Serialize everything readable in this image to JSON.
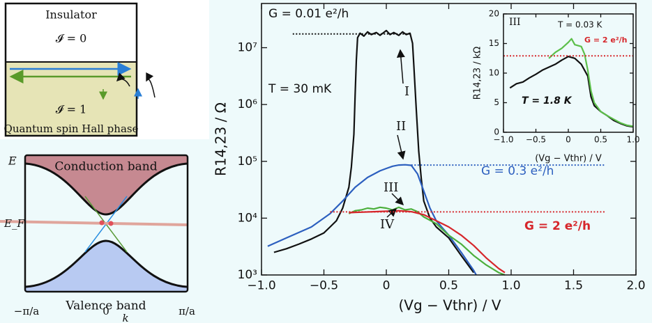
{
  "chart_data": [
    {
      "type": "line",
      "log_y": true,
      "ylabel": "R14,23 / Ω",
      "xlabel": "(Vg − Vthr) / V",
      "xlim": [
        -1.0,
        2.0
      ],
      "xticks": [
        {
          "value": -1.0,
          "label": "−1.0"
        },
        {
          "value": -0.5,
          "label": "−0.5"
        },
        0,
        0.5,
        {
          "value": 1.0,
          "label": "1.0"
        },
        1.5,
        {
          "value": 2.0,
          "label": "2.0"
        }
      ],
      "ylim": [
        1000,
        60000000
      ],
      "yticks": [
        {
          "value": 1000,
          "label": "10³"
        },
        {
          "value": 10000,
          "label": "10⁴"
        },
        {
          "value": 100000,
          "label": "10⁵"
        },
        {
          "value": 1000000,
          "label": "10⁶"
        },
        {
          "value": 10000000,
          "label": "10⁷"
        }
      ],
      "annotations": [
        "T = 30 mK"
      ],
      "series": [
        {
          "name": "I",
          "color": "#111111",
          "x": [
            -0.9,
            -0.8,
            -0.7,
            -0.6,
            -0.5,
            -0.45,
            -0.4,
            -0.35,
            -0.3,
            -0.28,
            -0.26,
            -0.25,
            -0.24,
            -0.23,
            -0.21,
            -0.18,
            -0.15,
            -0.12,
            -0.08,
            -0.05,
            0,
            0.03,
            0.06,
            0.1,
            0.13,
            0.16,
            0.19,
            0.21,
            0.22,
            0.24,
            0.26,
            0.28,
            0.3,
            0.35,
            0.4,
            0.5,
            0.6,
            0.7
          ],
          "values": [
            2500,
            2900,
            3500,
            4300,
            5500,
            7000,
            9000,
            15000,
            35000,
            80000,
            300000,
            1500000,
            6000000,
            15000000,
            18000000,
            16000000,
            19000000,
            17000000,
            18500000,
            16500000,
            20000000,
            17000000,
            18500000,
            16500000,
            19000000,
            17000000,
            18000000,
            12000000,
            5000000,
            800000,
            150000,
            50000,
            20000,
            10000,
            7000,
            4500,
            2200,
            1100
          ]
        },
        {
          "name": "II",
          "color": "#2c5fbf",
          "x": [
            -0.95,
            -0.8,
            -0.6,
            -0.45,
            -0.35,
            -0.25,
            -0.15,
            -0.05,
            0,
            0.05,
            0.1,
            0.15,
            0.2,
            0.25,
            0.3,
            0.35,
            0.4,
            0.5,
            0.6,
            0.7,
            0.72
          ],
          "values": [
            3200,
            4500,
            7000,
            12000,
            20000,
            35000,
            52000,
            68000,
            75000,
            82000,
            86000,
            87000,
            85000,
            60000,
            30000,
            15000,
            9000,
            5000,
            2500,
            1200,
            1000
          ]
        },
        {
          "name": "III",
          "color": "#4caf3c",
          "x": [
            -0.3,
            -0.25,
            -0.2,
            -0.15,
            -0.1,
            -0.05,
            0,
            0.05,
            0.1,
            0.15,
            0.2,
            0.25,
            0.3,
            0.4,
            0.5,
            0.6,
            0.7,
            0.8,
            0.9,
            0.95
          ],
          "values": [
            12000,
            13500,
            14000,
            15000,
            14500,
            15500,
            15000,
            14000,
            15500,
            14000,
            14500,
            13000,
            10500,
            8000,
            5000,
            3500,
            2200,
            1500,
            1100,
            1000
          ]
        },
        {
          "name": "IV",
          "color": "#d6262b",
          "x": [
            -0.3,
            -0.1,
            0.1,
            0.2,
            0.3,
            0.4,
            0.5,
            0.6,
            0.7,
            0.8,
            0.9,
            0.95
          ],
          "values": [
            12500,
            13000,
            13500,
            13000,
            11500,
            9000,
            7000,
            5000,
            3300,
            2000,
            1300,
            1100
          ]
        },
        {
          "name": "G = 0.01 e²/h",
          "color": "#111111",
          "dash": "dotted",
          "x": [
            -0.75,
            0.2
          ],
          "values": [
            17500000,
            17500000
          ]
        },
        {
          "name": "G = 0.3 e²/h",
          "color": "#2c5fbf",
          "dash": "dotted",
          "x": [
            0.2,
            1.75
          ],
          "values": [
            86000,
            86000
          ]
        },
        {
          "name": "G = 2 e²/h",
          "color": "#d6262b",
          "dash": "dotted",
          "x": [
            -0.45,
            1.75
          ],
          "values": [
            12900,
            12900
          ]
        }
      ]
    },
    {
      "type": "line",
      "log_y": false,
      "ylabel": "R14,23 / kΩ",
      "xlabel": "(Vg − Vthr) / V",
      "xlim": [
        -1.0,
        1.0
      ],
      "xticks": [
        {
          "value": -1.0,
          "label": "−1.0"
        },
        {
          "value": -0.5,
          "label": "−0.5"
        },
        0,
        0.5,
        {
          "value": 1.0,
          "label": "1.0"
        }
      ],
      "ylim": [
        0,
        20
      ],
      "yticks": [
        0,
        5,
        10,
        15,
        20
      ],
      "annotations": [
        "III"
      ],
      "series": [
        {
          "name": "T = 1.8 K",
          "color": "#111111",
          "x": [
            -0.9,
            -0.8,
            -0.7,
            -0.6,
            -0.5,
            -0.4,
            -0.3,
            -0.2,
            -0.1,
            0,
            0.1,
            0.2,
            0.3,
            0.35,
            0.4,
            0.5,
            0.6,
            0.7,
            0.8,
            0.9,
            1.0
          ],
          "values": [
            7.5,
            8.2,
            8.5,
            9.2,
            9.8,
            10.5,
            11.0,
            11.5,
            12.2,
            12.8,
            12.5,
            11.5,
            9.5,
            6.0,
            4.5,
            3.5,
            2.8,
            2.0,
            1.5,
            1.1,
            0.9
          ]
        },
        {
          "name": "T = 0.03 K",
          "color": "#5cbf4a",
          "x": [
            -0.3,
            -0.2,
            -0.1,
            0,
            0.05,
            0.1,
            0.2,
            0.25,
            0.3,
            0.35,
            0.4,
            0.5,
            0.6,
            0.7,
            0.8,
            0.9,
            1.0
          ],
          "values": [
            12.5,
            13.5,
            14.2,
            15.2,
            15.8,
            14.8,
            14.5,
            13.2,
            10.5,
            7.0,
            5.0,
            3.5,
            2.8,
            2.2,
            1.6,
            1.2,
            1.0
          ]
        },
        {
          "name": "G = 2 e²/h",
          "color": "#d6262b",
          "dash": "dotted",
          "x": [
            -1.0,
            1.0
          ],
          "values": [
            12.9,
            12.9
          ]
        }
      ]
    }
  ],
  "schematic": {
    "insulator": "Insulator",
    "insulator_index": "𝓘 = 0",
    "qsh_index": "𝓘 = 1",
    "qsh": "Quantum spin Hall phase",
    "conduction": "Conduction band",
    "valence": "Valence band",
    "energy": "E",
    "fermi": "E_F",
    "k_min": "−π/a",
    "k_zero": "0",
    "k_max": "π/a",
    "k_axis": "k"
  }
}
